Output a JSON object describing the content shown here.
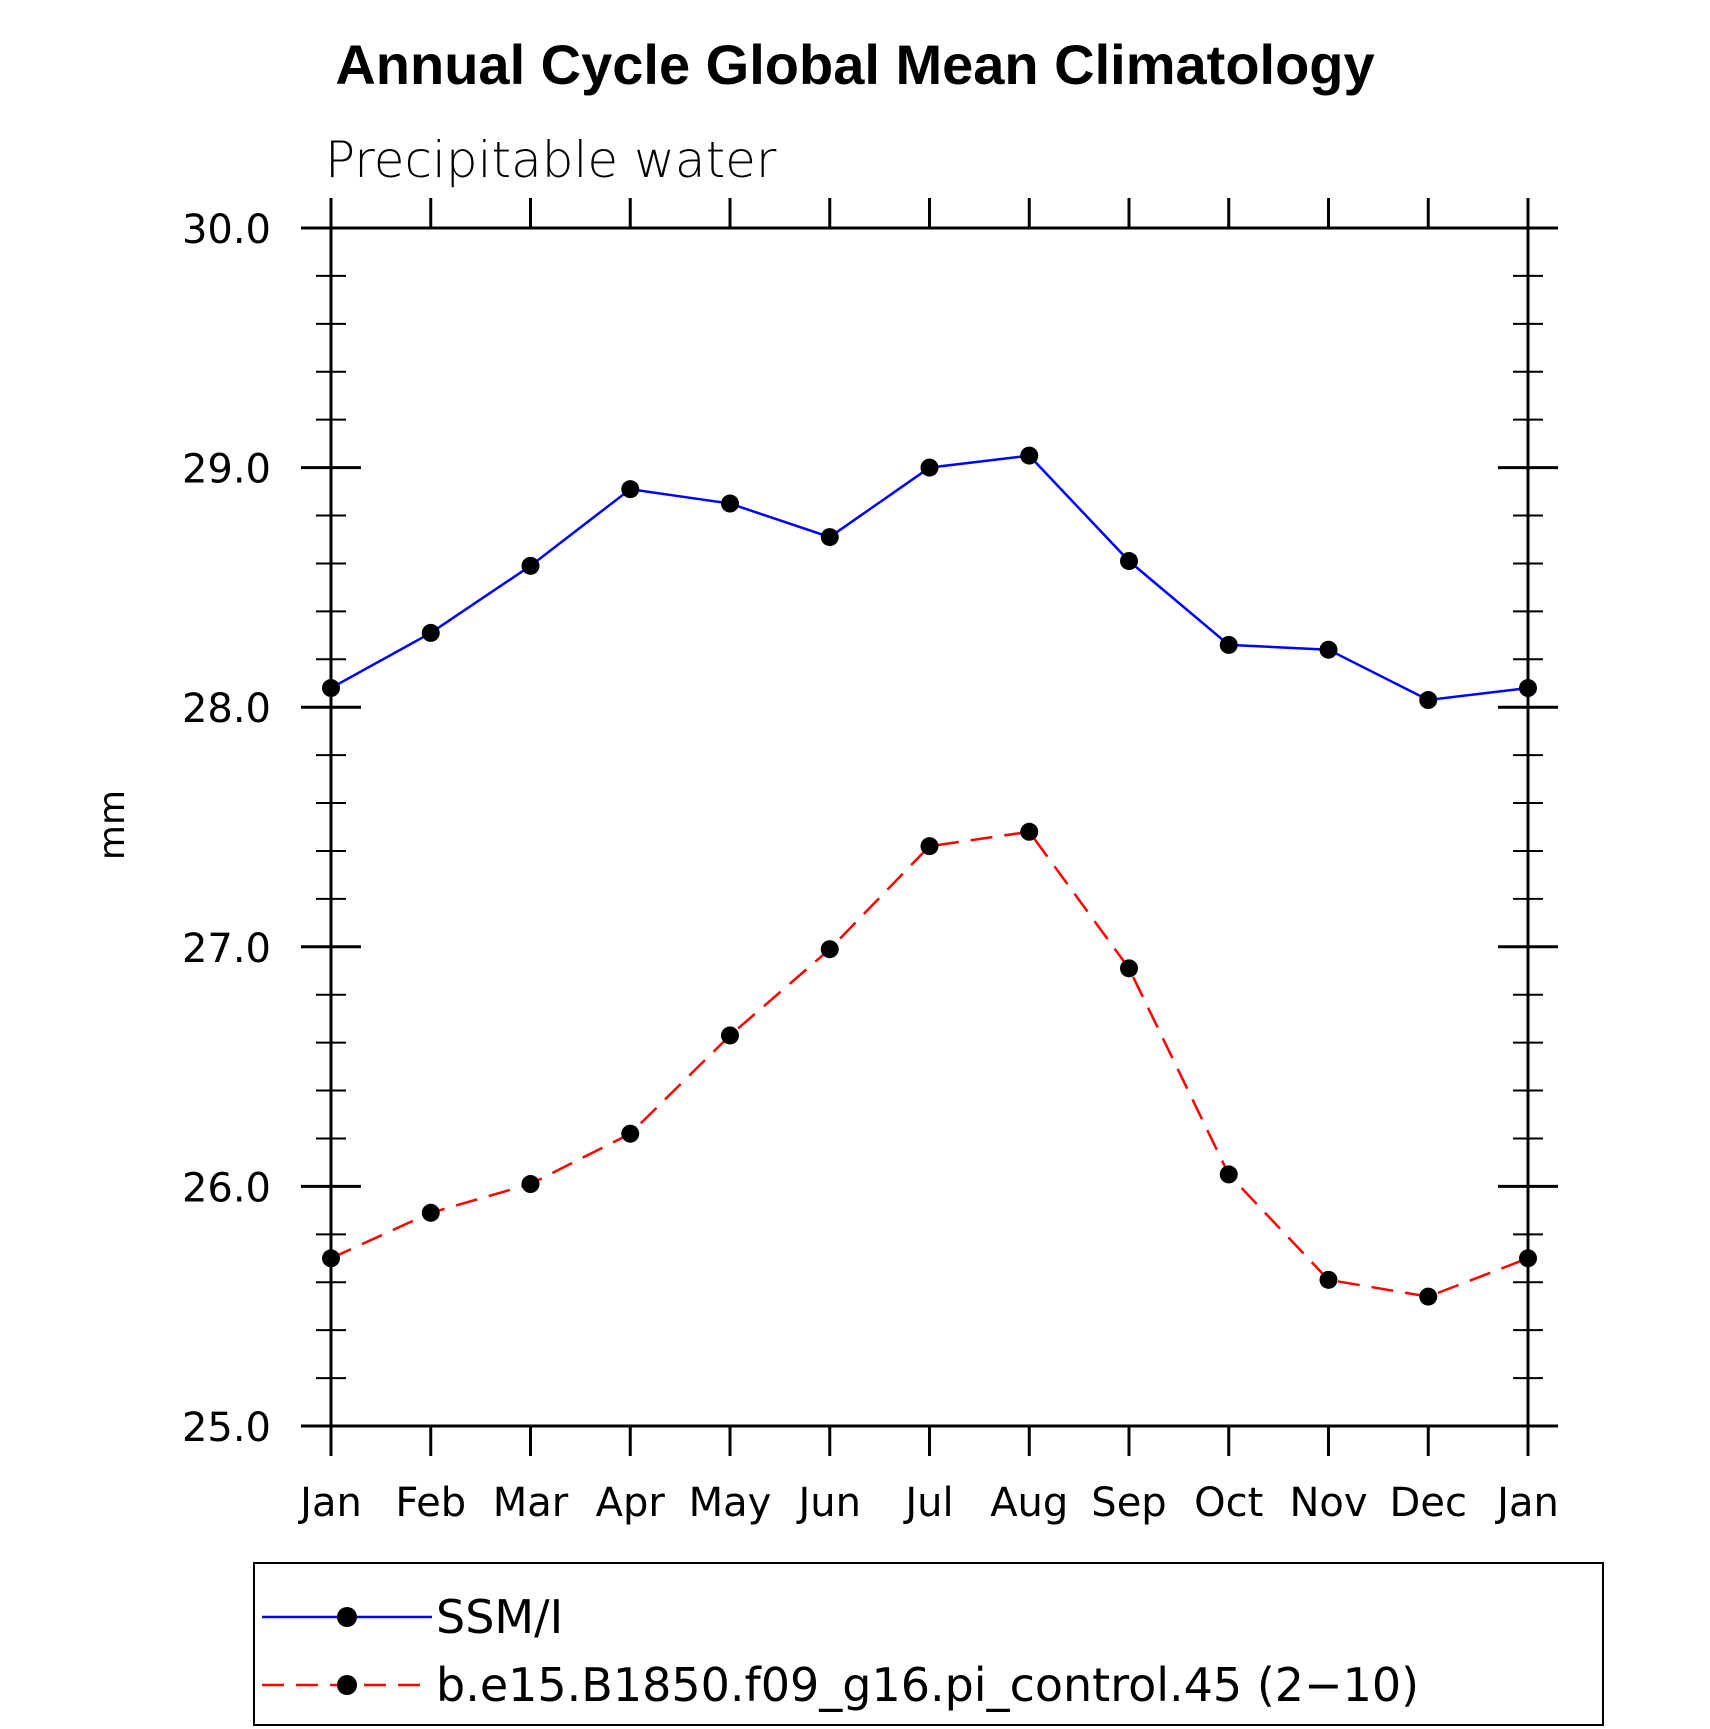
{
  "chart_data": {
    "type": "line",
    "title": "Annual Cycle Global Mean Climatology",
    "subtitle": "Precipitable water",
    "xlabel": "",
    "ylabel": "mm",
    "categories": [
      "Jan",
      "Feb",
      "Mar",
      "Apr",
      "May",
      "Jun",
      "Jul",
      "Aug",
      "Sep",
      "Oct",
      "Nov",
      "Dec",
      "Jan"
    ],
    "ylim": [
      25.0,
      30.0
    ],
    "yticks": [
      "25.0",
      "26.0",
      "27.0",
      "28.0",
      "29.0",
      "30.0"
    ],
    "grid": false,
    "legend_position": "bottom",
    "series": [
      {
        "name": "SSM/I",
        "color": "#0000ff",
        "line_style": "solid",
        "marker": "filled-circle",
        "values": [
          28.08,
          28.31,
          28.59,
          28.91,
          28.85,
          28.71,
          29.0,
          29.05,
          28.61,
          28.26,
          28.24,
          28.03,
          28.08
        ]
      },
      {
        "name": "b.e15.B1850.f09_g16.pi_control.45 (2−10)",
        "color": "#ff0000",
        "line_style": "dashed",
        "marker": "filled-circle",
        "values": [
          25.7,
          25.89,
          26.01,
          26.22,
          26.63,
          26.99,
          27.42,
          27.48,
          26.91,
          26.05,
          25.61,
          25.54,
          25.7
        ]
      }
    ]
  }
}
